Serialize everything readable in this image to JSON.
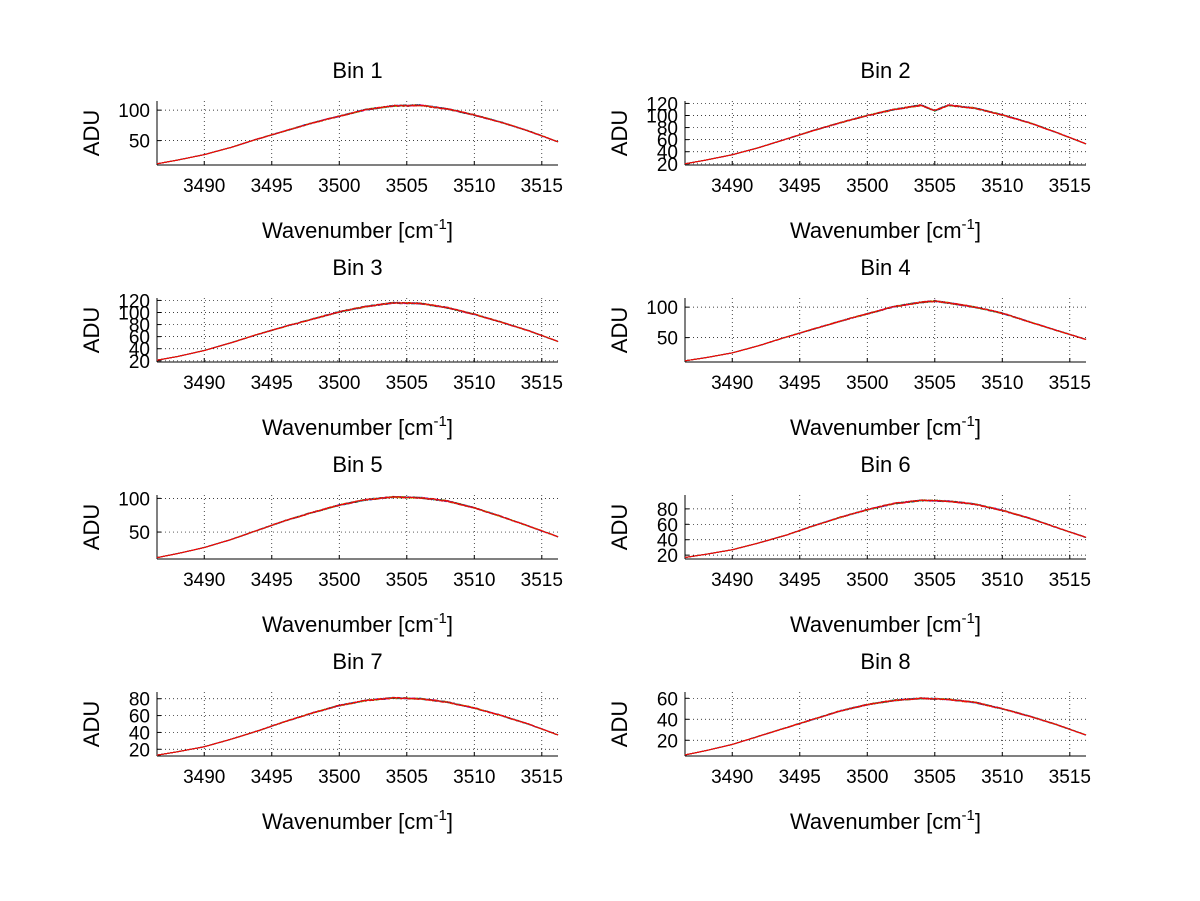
{
  "chart_data": [
    {
      "type": "line",
      "title": "Bin 1",
      "xlabel": "Wavenumber [cm",
      "xlabel_sup": "-1",
      "xlabel_end": "]",
      "ylabel": "ADU",
      "xlim": [
        3486.5,
        3516.2
      ],
      "xticks": [
        3490,
        3495,
        3500,
        3505,
        3510,
        3515
      ],
      "ylim": [
        10,
        115
      ],
      "yticks": [
        50,
        100
      ],
      "series": [
        {
          "x": [
            3486.5,
            3488,
            3490,
            3492,
            3494,
            3496,
            3498,
            3500,
            3502,
            3504,
            3506,
            3508,
            3510,
            3512,
            3514,
            3516.2
          ],
          "y": [
            12,
            18,
            27,
            39,
            53,
            66,
            79,
            90,
            101,
            107,
            108,
            102,
            92,
            80,
            66,
            48
          ]
        }
      ]
    },
    {
      "type": "line",
      "title": "Bin 2",
      "xlabel": "Wavenumber [cm",
      "xlabel_sup": "-1",
      "xlabel_end": "]",
      "ylabel": "ADU",
      "xlim": [
        3486.5,
        3516.2
      ],
      "xticks": [
        3490,
        3495,
        3500,
        3505,
        3510,
        3515
      ],
      "ylim": [
        18,
        124
      ],
      "yticks": [
        20,
        40,
        60,
        80,
        100,
        120
      ],
      "series": [
        {
          "x": [
            3486.5,
            3488,
            3490,
            3492,
            3494,
            3496,
            3498,
            3500,
            3502,
            3504,
            3505,
            3506,
            3508,
            3510,
            3512,
            3514,
            3516.2
          ],
          "y": [
            20,
            26,
            35,
            47,
            61,
            75,
            88,
            100,
            110,
            117,
            108,
            117,
            112,
            101,
            88,
            72,
            53
          ]
        }
      ]
    },
    {
      "type": "line",
      "title": "Bin 3",
      "xlabel": "Wavenumber [cm",
      "xlabel_sup": "-1",
      "xlabel_end": "]",
      "ylabel": "ADU",
      "xlim": [
        3486.5,
        3516.2
      ],
      "xticks": [
        3490,
        3495,
        3500,
        3505,
        3510,
        3515
      ],
      "ylim": [
        18,
        124
      ],
      "yticks": [
        20,
        40,
        60,
        80,
        100,
        120
      ],
      "series": [
        {
          "x": [
            3486.5,
            3488,
            3490,
            3492,
            3494,
            3496,
            3498,
            3500,
            3502,
            3504,
            3506,
            3508,
            3510,
            3512,
            3514,
            3516.2
          ],
          "y": [
            21,
            27,
            37,
            50,
            64,
            77,
            89,
            101,
            110,
            116,
            115,
            108,
            97,
            84,
            70,
            52
          ]
        }
      ]
    },
    {
      "type": "line",
      "title": "Bin 4",
      "xlabel": "Wavenumber [cm",
      "xlabel_sup": "-1",
      "xlabel_end": "]",
      "ylabel": "ADU",
      "xlim": [
        3486.5,
        3516.2
      ],
      "xticks": [
        3490,
        3495,
        3500,
        3505,
        3510,
        3515
      ],
      "ylim": [
        10,
        115
      ],
      "yticks": [
        50,
        100
      ],
      "series": [
        {
          "x": [
            3486.5,
            3488,
            3490,
            3492,
            3494,
            3496,
            3498,
            3500,
            3502,
            3504,
            3505,
            3506,
            3508,
            3510,
            3512,
            3514,
            3516.2
          ],
          "y": [
            12,
            17,
            25,
            37,
            51,
            64,
            77,
            89,
            101,
            108,
            110,
            107,
            100,
            90,
            76,
            62,
            47
          ]
        }
      ]
    },
    {
      "type": "line",
      "title": "Bin 5",
      "xlabel": "Wavenumber [cm",
      "xlabel_sup": "-1",
      "xlabel_end": "]",
      "ylabel": "ADU",
      "xlim": [
        3486.5,
        3516.2
      ],
      "xticks": [
        3490,
        3495,
        3500,
        3505,
        3510,
        3515
      ],
      "ylim": [
        10,
        105
      ],
      "yticks": [
        50,
        100
      ],
      "series": [
        {
          "x": [
            3486.5,
            3488,
            3490,
            3492,
            3494,
            3496,
            3498,
            3500,
            3502,
            3504,
            3506,
            3508,
            3510,
            3512,
            3514,
            3516.2
          ],
          "y": [
            12,
            18,
            27,
            39,
            53,
            67,
            79,
            90,
            98,
            102,
            101,
            96,
            86,
            73,
            59,
            43
          ]
        }
      ]
    },
    {
      "type": "line",
      "title": "Bin 6",
      "xlabel": "Wavenumber [cm",
      "xlabel_sup": "-1",
      "xlabel_end": "]",
      "ylabel": "ADU",
      "xlim": [
        3486.5,
        3516.2
      ],
      "xticks": [
        3490,
        3495,
        3500,
        3505,
        3510,
        3515
      ],
      "ylim": [
        15,
        98
      ],
      "yticks": [
        20,
        40,
        60,
        80
      ],
      "series": [
        {
          "x": [
            3486.5,
            3488,
            3490,
            3492,
            3494,
            3496,
            3498,
            3500,
            3502,
            3504,
            3506,
            3508,
            3510,
            3512,
            3514,
            3516.2
          ],
          "y": [
            17,
            21,
            27,
            36,
            46,
            58,
            69,
            79,
            87,
            91,
            90,
            86,
            78,
            68,
            56,
            43
          ]
        }
      ]
    },
    {
      "type": "line",
      "title": "Bin 7",
      "xlabel": "Wavenumber [cm",
      "xlabel_sup": "-1",
      "xlabel_end": "]",
      "ylabel": "ADU",
      "xlim": [
        3486.5,
        3516.2
      ],
      "xticks": [
        3490,
        3495,
        3500,
        3505,
        3510,
        3515
      ],
      "ylim": [
        12,
        88
      ],
      "yticks": [
        20,
        40,
        60,
        80
      ],
      "series": [
        {
          "x": [
            3486.5,
            3488,
            3490,
            3492,
            3494,
            3496,
            3498,
            3500,
            3502,
            3504,
            3506,
            3508,
            3510,
            3512,
            3514,
            3516.2
          ],
          "y": [
            13,
            17,
            23,
            32,
            42,
            53,
            63,
            72,
            78,
            81,
            80,
            76,
            69,
            60,
            50,
            37
          ]
        }
      ]
    },
    {
      "type": "line",
      "title": "Bin 8",
      "xlabel": "Wavenumber [cm",
      "xlabel_sup": "-1",
      "xlabel_end": "]",
      "ylabel": "ADU",
      "xlim": [
        3486.5,
        3516.2
      ],
      "xticks": [
        3490,
        3495,
        3500,
        3505,
        3510,
        3515
      ],
      "ylim": [
        5,
        66
      ],
      "yticks": [
        20,
        40,
        60
      ],
      "series": [
        {
          "x": [
            3486.5,
            3488,
            3490,
            3492,
            3494,
            3496,
            3498,
            3500,
            3502,
            3504,
            3506,
            3508,
            3510,
            3512,
            3514,
            3516.2
          ],
          "y": [
            6,
            10,
            16,
            24,
            32,
            40,
            48,
            54,
            58,
            60,
            59,
            56,
            50,
            43,
            35,
            25
          ]
        }
      ]
    }
  ],
  "series_colors": [
    "#0000ff",
    "#00a000",
    "#ff0000",
    "#00bfbf",
    "#bf00bf",
    "#bfbf00",
    "#404040",
    "#ff0000"
  ],
  "grid": "on",
  "legend": "none"
}
